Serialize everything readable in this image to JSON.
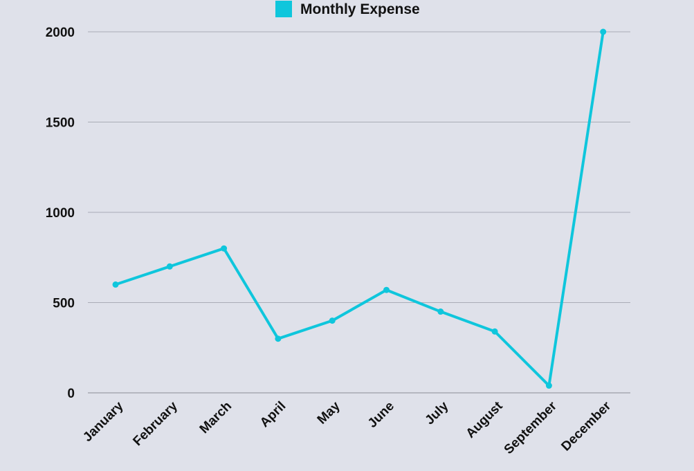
{
  "chart_data": {
    "type": "line",
    "title": "",
    "xlabel": "",
    "ylabel": "",
    "categories": [
      "January",
      "February",
      "March",
      "April",
      "May",
      "June",
      "July",
      "August",
      "September",
      "December"
    ],
    "series": [
      {
        "name": "Monthly Expense",
        "values": [
          600,
          700,
          800,
          300,
          400,
          570,
          450,
          340,
          40,
          2000
        ],
        "color": "#0fc6dc"
      }
    ],
    "ylim": [
      0,
      2000
    ],
    "yticks": [
      0,
      500,
      1000,
      1500,
      2000
    ],
    "grid": true,
    "legend_position": "top-center",
    "colors": {
      "background": "#dfe1ea",
      "gridline": "#a9acb6",
      "axis": "#8a8d96",
      "text": "#111111"
    }
  }
}
